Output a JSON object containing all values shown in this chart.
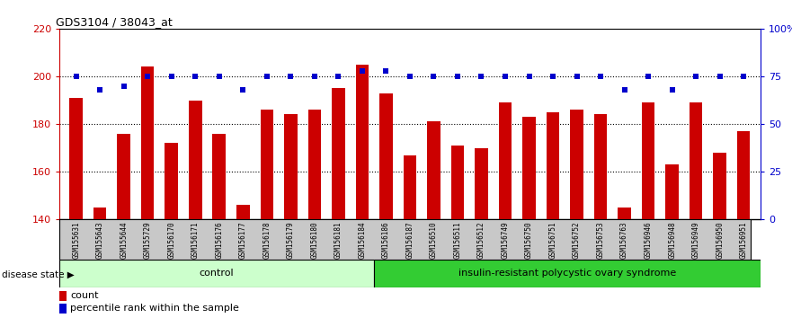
{
  "title": "GDS3104 / 38043_at",
  "samples": [
    "GSM155631",
    "GSM155643",
    "GSM155644",
    "GSM155729",
    "GSM156170",
    "GSM156171",
    "GSM156176",
    "GSM156177",
    "GSM156178",
    "GSM156179",
    "GSM156180",
    "GSM156181",
    "GSM156184",
    "GSM156186",
    "GSM156187",
    "GSM156510",
    "GSM156511",
    "GSM156512",
    "GSM156749",
    "GSM156750",
    "GSM156751",
    "GSM156752",
    "GSM156753",
    "GSM156763",
    "GSM156946",
    "GSM156948",
    "GSM156949",
    "GSM156950",
    "GSM156951"
  ],
  "bar_values": [
    191,
    145,
    176,
    204,
    172,
    190,
    176,
    146,
    186,
    184,
    186,
    195,
    205,
    193,
    167,
    181,
    171,
    170,
    189,
    183,
    185,
    186,
    184,
    145,
    189,
    163,
    189,
    168,
    177
  ],
  "percentile_values": [
    75,
    68,
    70,
    75,
    75,
    75,
    75,
    68,
    75,
    75,
    75,
    75,
    78,
    78,
    75,
    75,
    75,
    75,
    75,
    75,
    75,
    75,
    75,
    68,
    75,
    68,
    75,
    75,
    75
  ],
  "control_count": 13,
  "disease_label": "insulin-resistant polycystic ovary syndrome",
  "control_label": "control",
  "disease_state_label": "disease state",
  "ylim_left": [
    140,
    220
  ],
  "ylim_right": [
    0,
    100
  ],
  "yticks_left": [
    140,
    160,
    180,
    200,
    220
  ],
  "yticks_right": [
    0,
    25,
    50,
    75,
    100
  ],
  "yticklabels_right": [
    "0",
    "25",
    "50",
    "75",
    "100%"
  ],
  "bar_color": "#cc0000",
  "scatter_color": "#0000cc",
  "control_bg": "#ccffcc",
  "disease_bg": "#33cc33",
  "xlabel_bg": "#c8c8c8",
  "bar_width": 0.55,
  "dotted_lines": [
    160,
    180,
    200
  ]
}
